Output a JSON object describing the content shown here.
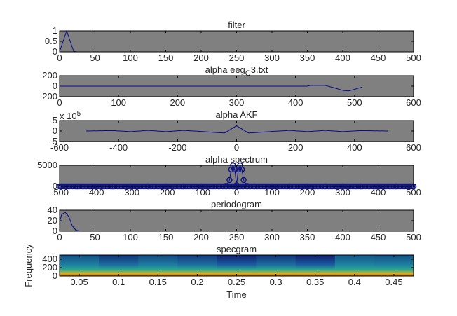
{
  "chart_data": [
    {
      "type": "line",
      "title": "filter",
      "xlim": [
        0,
        500
      ],
      "ylim": [
        0,
        1
      ],
      "xticks": [
        0,
        50,
        100,
        150,
        200,
        250,
        300,
        350,
        400,
        450,
        500
      ],
      "yticks": [
        0,
        0.5,
        1
      ],
      "x": [
        0,
        5,
        10,
        15,
        20,
        25,
        500
      ],
      "y": [
        0,
        0.5,
        1,
        0.5,
        0.02,
        0,
        0
      ]
    },
    {
      "type": "line",
      "title": "alpha eeg",
      "title_sub": "C",
      "title_tail": "3.txt",
      "xlim": [
        0,
        600
      ],
      "ylim": [
        -200,
        200
      ],
      "xticks": [
        0,
        100,
        200,
        300,
        400,
        500,
        600
      ],
      "yticks": [
        -200,
        0,
        200
      ],
      "x": [
        0,
        420,
        425,
        450,
        465,
        480,
        490,
        500,
        512
      ],
      "y": [
        0,
        0,
        15,
        15,
        -30,
        -80,
        -90,
        -60,
        -20
      ]
    },
    {
      "type": "line",
      "title": "alpha AKF",
      "exponent_label": "x 10",
      "exponent": "5",
      "xlim": [
        -600,
        600
      ],
      "ylim": [
        -5,
        5
      ],
      "xticks": [
        -600,
        -400,
        -200,
        0,
        200,
        400,
        600
      ],
      "yticks": [
        -5,
        0,
        5
      ],
      "x": [
        -512,
        -420,
        -360,
        -300,
        -240,
        -180,
        -120,
        -60,
        -40,
        0,
        40,
        60,
        120,
        180,
        240,
        300,
        360,
        420,
        512
      ],
      "y": [
        0,
        0.2,
        -0.3,
        0.3,
        -0.3,
        0.3,
        -0.2,
        -0.8,
        -0.9,
        2.5,
        -0.9,
        -0.8,
        -0.2,
        0.3,
        -0.3,
        0.3,
        -0.3,
        0.2,
        0
      ]
    },
    {
      "type": "scatter",
      "title": "alpha spectrum",
      "marker": "circle",
      "xlim": [
        -500,
        500
      ],
      "ylim": [
        0,
        5000
      ],
      "xticks": [
        -500,
        -400,
        -300,
        -200,
        -100,
        0,
        100,
        200,
        300,
        400,
        500
      ],
      "yticks": [
        0,
        5000
      ],
      "x": [
        -500,
        -450,
        -400,
        -350,
        -300,
        -250,
        -200,
        -150,
        -100,
        -50,
        -30,
        -20,
        -15,
        -10,
        -5,
        0,
        5,
        10,
        15,
        20,
        30,
        50,
        100,
        150,
        200,
        250,
        300,
        350,
        400,
        450,
        500
      ],
      "y": [
        0,
        0,
        0,
        0,
        0,
        0,
        0,
        0,
        0,
        0,
        100,
        1500,
        4000,
        5000,
        4000,
        300,
        4000,
        5000,
        4000,
        1500,
        100,
        0,
        0,
        0,
        0,
        0,
        0,
        0,
        0,
        0,
        0
      ]
    },
    {
      "type": "line",
      "title": "periodogram",
      "xlim": [
        0,
        500
      ],
      "ylim": [
        0,
        40
      ],
      "xticks": [
        0,
        50,
        100,
        150,
        200,
        250,
        300,
        350,
        400,
        450,
        500
      ],
      "yticks": [
        0,
        20,
        40
      ],
      "x": [
        0,
        3,
        8,
        13,
        18,
        23,
        30,
        500
      ],
      "y": [
        18,
        32,
        36,
        28,
        10,
        2,
        0,
        0
      ]
    },
    {
      "type": "heatmap",
      "title": "specgram",
      "xlabel": "Time",
      "ylabel": "Frequency",
      "xlim": [
        0.025,
        0.475
      ],
      "ylim": [
        0,
        500
      ],
      "xticks": [
        0.05,
        0.1,
        0.15,
        0.2,
        0.25,
        0.3,
        0.35,
        0.4,
        0.45
      ],
      "yticks": [
        0,
        200,
        400
      ],
      "time_bins": [
        0.05,
        0.1,
        0.15,
        0.2,
        0.25,
        0.3,
        0.35,
        0.4,
        0.45
      ],
      "relative_power": [
        0.6,
        0.35,
        0.55,
        0.4,
        0.15,
        0.35,
        0.15,
        0.65,
        0.6
      ]
    }
  ],
  "colors": {
    "axes_bg": "#808080",
    "line": "#0a0a8c",
    "marker": "#101580"
  }
}
